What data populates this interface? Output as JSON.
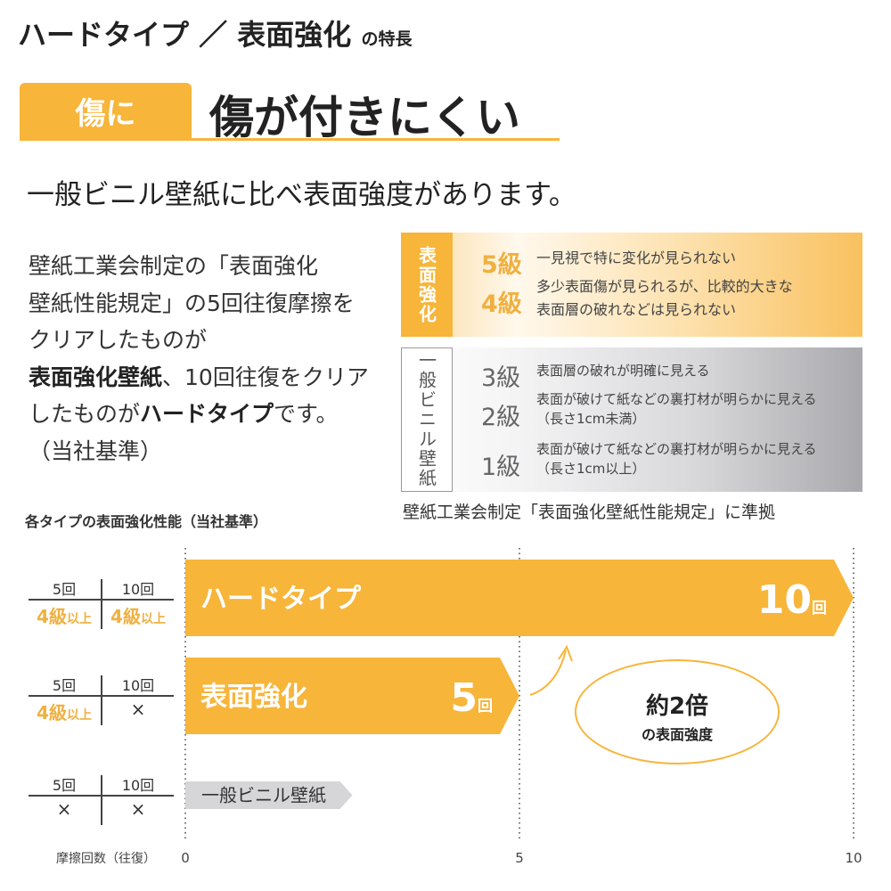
{
  "title": {
    "main": "ハードタイプ ／ 表面強化",
    "suffix": "の特長"
  },
  "tab": "傷に",
  "headline": "傷が付きにくい",
  "subtitle": "一般ビニル壁紙に比べ表面強度があります。",
  "paragraph": {
    "l1": "壁紙工業会制定の「表面強化",
    "l2": "壁紙性能規定」の5回往復摩擦を",
    "l3": "クリアしたものが",
    "l4a": "表面強化壁紙",
    "l4b": "、10回往復をクリア",
    "l5a": "したものが",
    "l5b": "ハードタイプ",
    "l5c": "です。",
    "l6": "（当社基準）"
  },
  "grades": {
    "surface_label": "表面強化",
    "surface": [
      {
        "grade": "5級",
        "desc": [
          "一見視で特に変化が見られない"
        ]
      },
      {
        "grade": "4級",
        "desc": [
          "多少表面傷が見られるが、比較的大きな",
          "表面層の破れなどは見られない"
        ]
      }
    ],
    "vinyl_label": "一般ビニル壁紙",
    "vinyl": [
      {
        "grade": "3級",
        "desc": [
          "表面層の破れが明確に見える"
        ]
      },
      {
        "grade": "2級",
        "desc": [
          "表面が破けて紙などの裏打材が明らかに見える",
          "（長さ1cm未満）"
        ]
      },
      {
        "grade": "1級",
        "desc": [
          "表面が破けて紙などの裏打材が明らかに見える",
          "（長さ1cm以上）"
        ]
      }
    ],
    "caption": "壁紙工業会制定「表面強化壁紙性能規定」に準拠"
  },
  "chart_data": {
    "type": "bar",
    "title": "各タイプの表面強化性能（当社基準）",
    "xlabel": "摩擦回数（往復）",
    "xlim": [
      0,
      10
    ],
    "xticks": [
      "0",
      "5",
      "10"
    ],
    "grid": "dotted vertical at 0, 5, 10",
    "categories": [
      "ハードタイプ",
      "表面強化",
      "一般ビニル壁紙"
    ],
    "values": [
      10,
      5,
      2.5
    ],
    "data_labels": [
      "10",
      "5",
      ""
    ],
    "data_label_unit": "回",
    "colors": [
      "#f7b53a",
      "#f7b53a",
      "#d6d6d8"
    ],
    "tables": [
      {
        "h5": "5回",
        "h10": "10回",
        "v5": "4級",
        "v5s": "以上",
        "v10": "4級",
        "v10s": "以上"
      },
      {
        "h5": "5回",
        "h10": "10回",
        "v5": "4級",
        "v5s": "以上",
        "v10": "×",
        "v10s": ""
      },
      {
        "h5": "5回",
        "h10": "10回",
        "v5": "×",
        "v5s": "",
        "v10": "×",
        "v10s": ""
      }
    ],
    "annotation": {
      "big": "約2倍",
      "small": "の表面強度"
    }
  },
  "colors": {
    "accent": "#f7b53a",
    "gray": "#d6d6d8"
  }
}
